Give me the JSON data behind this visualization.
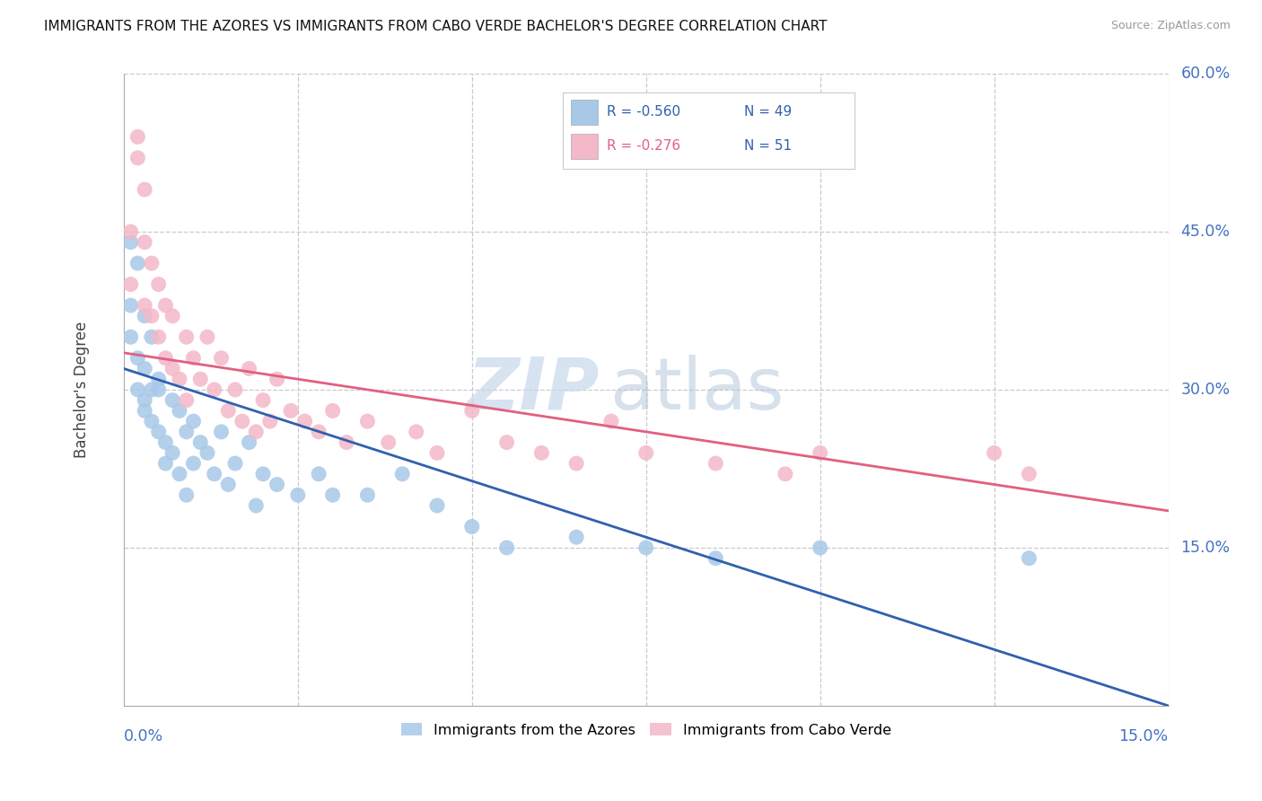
{
  "title": "IMMIGRANTS FROM THE AZORES VS IMMIGRANTS FROM CABO VERDE BACHELOR'S DEGREE CORRELATION CHART",
  "source": "Source: ZipAtlas.com",
  "ylabel": "Bachelor's Degree",
  "xlim": [
    0.0,
    0.15
  ],
  "ylim": [
    0.0,
    0.6
  ],
  "yticks": [
    0.15,
    0.3,
    0.45,
    0.6
  ],
  "ytick_labels": [
    "15.0%",
    "30.0%",
    "45.0%",
    "60.0%"
  ],
  "xticks": [
    0.0,
    0.025,
    0.05,
    0.075,
    0.1,
    0.125,
    0.15
  ],
  "legend1_label": "Immigrants from the Azores",
  "legend2_label": "Immigrants from Cabo Verde",
  "R1": -0.56,
  "N1": 49,
  "R2": -0.276,
  "N2": 51,
  "color_azores": "#a8c8e8",
  "color_cabo": "#f4b8c8",
  "color_line_azores": "#3060b0",
  "color_line_cabo": "#e06080",
  "color_axis_labels": "#4472C4",
  "watermark_zip": "ZIP",
  "watermark_atlas": "atlas",
  "line1_x0": 0.0,
  "line1_y0": 0.32,
  "line1_x1": 0.15,
  "line1_y1": 0.0,
  "line2_x0": 0.0,
  "line2_y0": 0.335,
  "line2_x1": 0.15,
  "line2_y1": 0.185,
  "azores_x": [
    0.001,
    0.001,
    0.001,
    0.002,
    0.002,
    0.002,
    0.003,
    0.003,
    0.003,
    0.003,
    0.004,
    0.004,
    0.004,
    0.005,
    0.005,
    0.005,
    0.006,
    0.006,
    0.007,
    0.007,
    0.008,
    0.008,
    0.009,
    0.009,
    0.01,
    0.01,
    0.011,
    0.012,
    0.013,
    0.014,
    0.015,
    0.016,
    0.018,
    0.019,
    0.02,
    0.022,
    0.025,
    0.028,
    0.03,
    0.035,
    0.04,
    0.045,
    0.05,
    0.055,
    0.065,
    0.075,
    0.085,
    0.1,
    0.13
  ],
  "azores_y": [
    0.44,
    0.38,
    0.35,
    0.42,
    0.33,
    0.3,
    0.37,
    0.32,
    0.29,
    0.28,
    0.35,
    0.3,
    0.27,
    0.31,
    0.26,
    0.3,
    0.25,
    0.23,
    0.29,
    0.24,
    0.28,
    0.22,
    0.26,
    0.2,
    0.27,
    0.23,
    0.25,
    0.24,
    0.22,
    0.26,
    0.21,
    0.23,
    0.25,
    0.19,
    0.22,
    0.21,
    0.2,
    0.22,
    0.2,
    0.2,
    0.22,
    0.19,
    0.17,
    0.15,
    0.16,
    0.15,
    0.14,
    0.15,
    0.14
  ],
  "cabo_x": [
    0.001,
    0.001,
    0.002,
    0.002,
    0.003,
    0.003,
    0.003,
    0.004,
    0.004,
    0.005,
    0.005,
    0.006,
    0.006,
    0.007,
    0.007,
    0.008,
    0.009,
    0.009,
    0.01,
    0.011,
    0.012,
    0.013,
    0.014,
    0.015,
    0.016,
    0.017,
    0.018,
    0.019,
    0.02,
    0.021,
    0.022,
    0.024,
    0.026,
    0.028,
    0.03,
    0.032,
    0.035,
    0.038,
    0.042,
    0.045,
    0.05,
    0.055,
    0.06,
    0.065,
    0.07,
    0.075,
    0.085,
    0.095,
    0.1,
    0.125,
    0.13
  ],
  "cabo_y": [
    0.45,
    0.4,
    0.54,
    0.52,
    0.49,
    0.44,
    0.38,
    0.42,
    0.37,
    0.4,
    0.35,
    0.38,
    0.33,
    0.37,
    0.32,
    0.31,
    0.35,
    0.29,
    0.33,
    0.31,
    0.35,
    0.3,
    0.33,
    0.28,
    0.3,
    0.27,
    0.32,
    0.26,
    0.29,
    0.27,
    0.31,
    0.28,
    0.27,
    0.26,
    0.28,
    0.25,
    0.27,
    0.25,
    0.26,
    0.24,
    0.28,
    0.25,
    0.24,
    0.23,
    0.27,
    0.24,
    0.23,
    0.22,
    0.24,
    0.24,
    0.22
  ]
}
